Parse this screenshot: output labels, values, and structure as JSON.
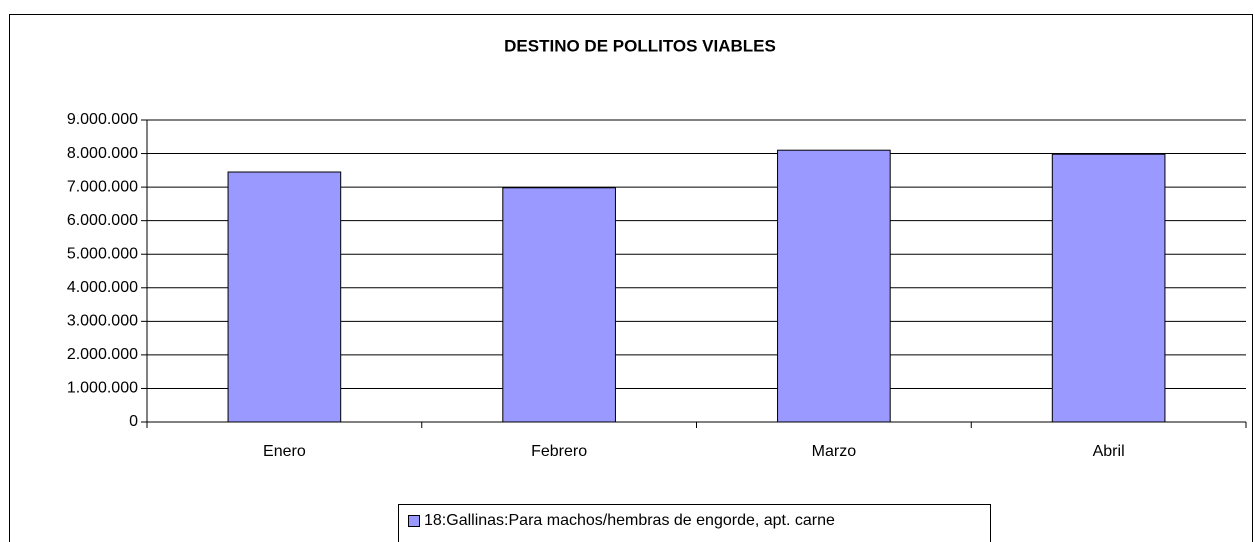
{
  "chart_data": {
    "type": "bar",
    "title": "DESTINO DE POLLITOS VIABLES",
    "categories": [
      "Enero",
      "Febrero",
      "Marzo",
      "Abril"
    ],
    "series": [
      {
        "name": "18:Gallinas:Para machos/hembras de engorde, apt. carne",
        "color": "#9999ff",
        "values": [
          7450000,
          6980000,
          8100000,
          7980000
        ]
      }
    ],
    "ylim": [
      0,
      9000000
    ],
    "yticks": [
      0,
      {
        "value": 1000000,
        "label": "1.000.000"
      },
      {
        "value": 2000000,
        "label": "2.000.000"
      },
      {
        "value": 3000000,
        "label": "3.000.000"
      },
      {
        "value": 4000000,
        "label": "4.000.000"
      },
      {
        "value": 5000000,
        "label": "5.000.000"
      },
      {
        "value": 6000000,
        "label": "6.000.000"
      },
      {
        "value": 7000000,
        "label": "7.000.000"
      },
      {
        "value": 8000000,
        "label": "8.000.000"
      },
      {
        "value": 9000000,
        "label": "9.000.000"
      }
    ],
    "grid": true,
    "legend": "bottom"
  }
}
